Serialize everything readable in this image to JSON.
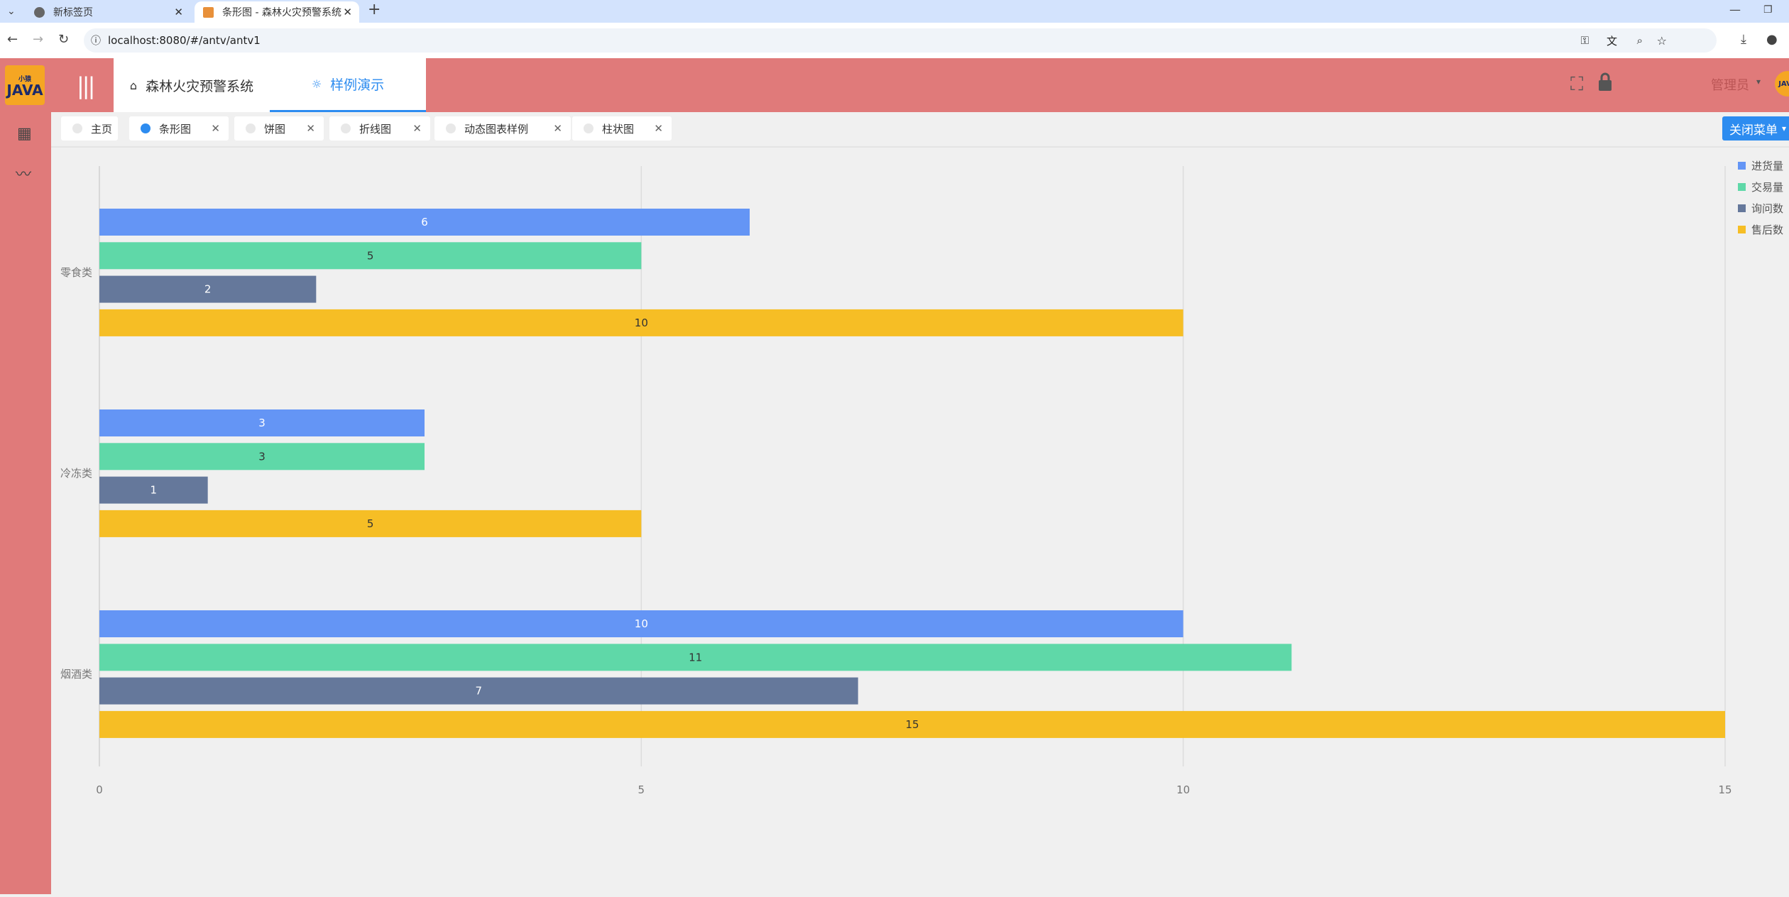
{
  "browser": {
    "tabs": [
      {
        "label": "新标签页"
      },
      {
        "label": "条形图 - 森林火灾预警系统"
      }
    ],
    "url": "localhost:8080/#/antv/antv1"
  },
  "sidebar": {
    "logo_small": "小猿",
    "logo_text": "JAVA"
  },
  "header": {
    "tabs": [
      {
        "label": "森林火灾预警系统",
        "icon": "home-icon"
      },
      {
        "label": "样例演示",
        "icon": "bulb-icon"
      }
    ],
    "user": "管理员",
    "avatar_text": "JAVA"
  },
  "page_tabs": [
    {
      "label": "主页",
      "closable": false,
      "active": false
    },
    {
      "label": "条形图",
      "closable": true,
      "active": true
    },
    {
      "label": "饼图",
      "closable": true,
      "active": false
    },
    {
      "label": "折线图",
      "closable": true,
      "active": false
    },
    {
      "label": "动态图表样例",
      "closable": true,
      "active": false
    },
    {
      "label": "柱状图",
      "closable": true,
      "active": false
    }
  ],
  "close_menu_label": "关闭菜单",
  "colors": {
    "sidebar_bg": "#e07a7a",
    "accent": "#2d8cf0"
  },
  "chart_data": {
    "type": "bar",
    "orientation": "horizontal",
    "categories": [
      "零食类",
      "冷冻类",
      "烟酒类"
    ],
    "series": [
      {
        "name": "进货量",
        "color": "#6495f5",
        "values": [
          6,
          3,
          10
        ]
      },
      {
        "name": "交易量",
        "color": "#5fd8a8",
        "values": [
          5,
          3,
          11
        ]
      },
      {
        "name": "询问数",
        "color": "#65789b",
        "values": [
          2,
          1,
          7
        ]
      },
      {
        "name": "售后数",
        "color": "#f6be25",
        "values": [
          10,
          5,
          15
        ]
      }
    ],
    "xlim": [
      0,
      15
    ],
    "x_ticks": [
      0,
      5,
      10,
      15
    ],
    "grid": true,
    "legend_position": "top-right"
  }
}
